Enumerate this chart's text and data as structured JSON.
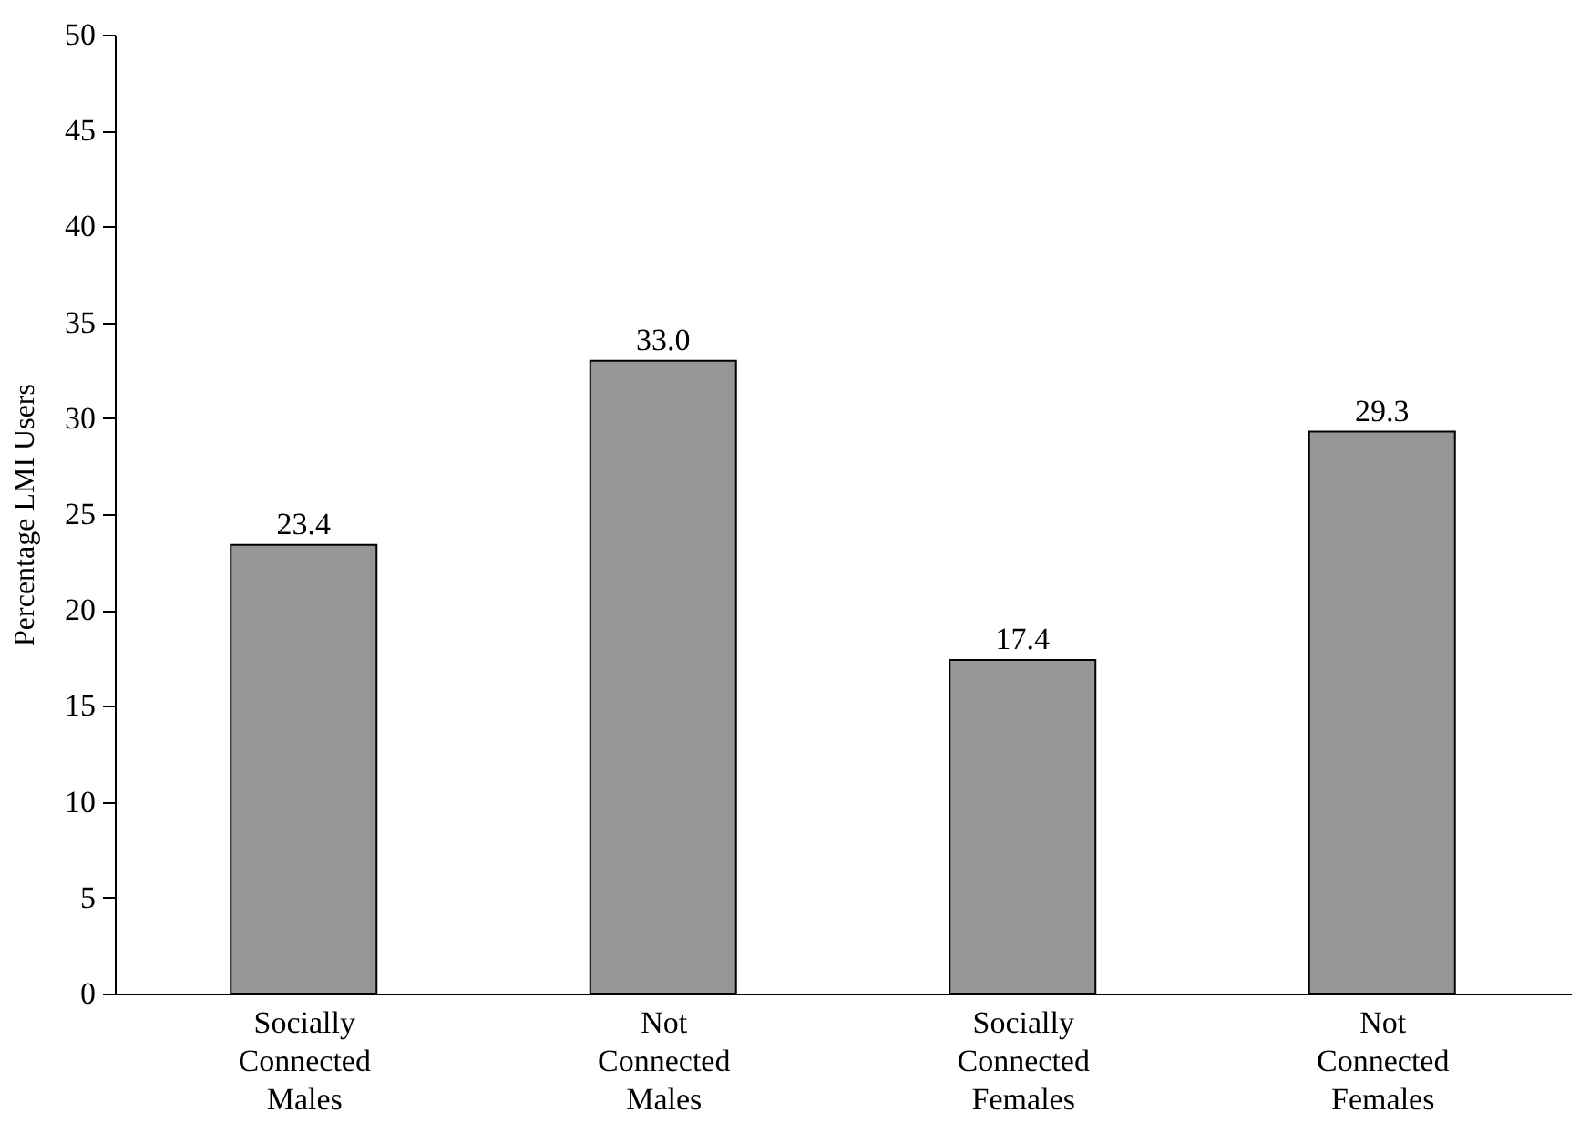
{
  "chart_data": {
    "type": "bar",
    "ylabel": "Percentage LMI Users",
    "categories": [
      "Socially Connected Males",
      "Not Connected Males",
      "Socially Connected Females",
      "Not Connected Females"
    ],
    "values": [
      23.4,
      33.0,
      17.4,
      29.3
    ],
    "value_labels": [
      "23.4",
      "33.0",
      "17.4",
      "29.3"
    ],
    "color": "#969696",
    "ylim": [
      0,
      50
    ],
    "yticks": [
      0,
      5,
      10,
      15,
      20,
      25,
      30,
      35,
      40,
      45,
      50
    ],
    "grid": false
  }
}
